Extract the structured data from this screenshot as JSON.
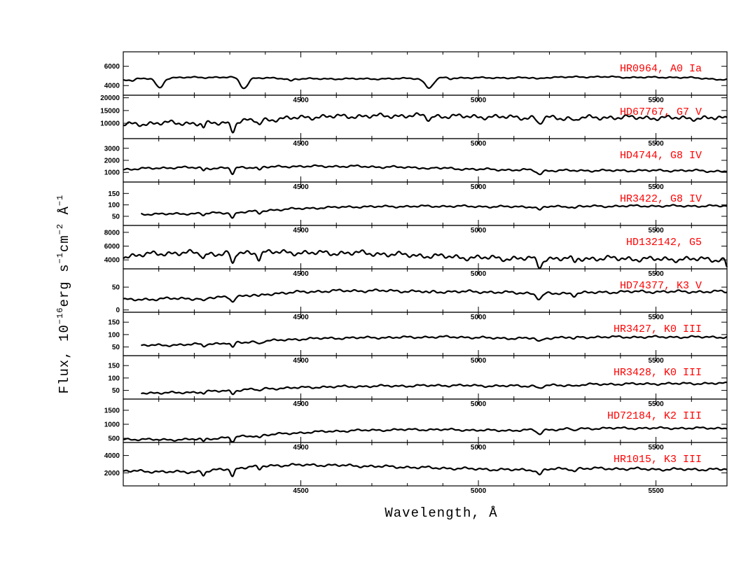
{
  "chart_data": {
    "type": "line",
    "xlabel": "Wavelength, Å",
    "ylabel": "Flux, 10^-16 erg s^-1 cm^-2 Å^-1",
    "ylabel_parts": {
      "pre": "Flux, 10",
      "exp1": "−16",
      "mid1": "erg s",
      "exp2": "−1",
      "mid2": "cm",
      "exp3": "−2",
      "mid3": " Å",
      "exp4": "−1"
    },
    "xlim": [
      4000,
      5700
    ],
    "x_ticks": [
      4500,
      5000,
      5500
    ],
    "x_tick_labels": [
      "4500",
      "5000",
      "5500"
    ],
    "panels": [
      {
        "name": "HR0964, A0 Ia",
        "ylim": [
          3000,
          7500
        ],
        "yticks": [
          4000,
          6000
        ],
        "start": 4000,
        "base": [
          4600,
          4700,
          4750,
          4800,
          4850,
          4850,
          4850,
          4850,
          4800,
          4750,
          4700,
          4700,
          4700,
          4700,
          4700,
          4700,
          4700,
          4750,
          4750,
          4800,
          4800,
          4800,
          4800,
          4800,
          4800,
          4850,
          4850,
          4900,
          4900,
          4900,
          4850,
          4850,
          4850,
          4850,
          4800,
          4700,
          4600
        ],
        "lines": [
          [
            4102,
            1000,
            10
          ],
          [
            4340,
            1100,
            11
          ],
          [
            4861,
            1000,
            12
          ],
          [
            4471,
            200,
            6
          ],
          [
            4026,
            150,
            6
          ],
          [
            5890,
            150,
            8
          ],
          [
            4922,
            100,
            5
          ],
          [
            5169,
            150,
            8
          ]
        ],
        "noise": 50
      },
      {
        "name": "HD67767, G7 V",
        "ylim": [
          4000,
          21000
        ],
        "yticks": [
          10000,
          15000,
          20000
        ],
        "start": 4000,
        "base": [
          9500,
          9800,
          10000,
          10200,
          10000,
          9800,
          10300,
          10800,
          11200,
          11600,
          12000,
          12400,
          12600,
          12700,
          12800,
          12800,
          12900,
          13000,
          12900,
          12800,
          12700,
          12600,
          12500,
          12400,
          12300,
          12200,
          12100,
          12100,
          12200,
          12300,
          12300,
          12200,
          12100,
          12100,
          12000,
          12000,
          12000
        ],
        "lines": [
          [
            4308,
            3500,
            6
          ],
          [
            4226,
            1500,
            4
          ],
          [
            4383,
            1800,
            5
          ],
          [
            4861,
            1500,
            6
          ],
          [
            5172,
            2500,
            7
          ],
          [
            5270,
            1200,
            5
          ]
        ],
        "noise": 600
      },
      {
        "name": "HD4744, G8 IV",
        "ylim": [
          200,
          3800
        ],
        "yticks": [
          1000,
          2000,
          3000
        ],
        "start": 4000,
        "base": [
          1250,
          1300,
          1350,
          1400,
          1400,
          1350,
          1350,
          1400,
          1450,
          1450,
          1500,
          1500,
          1500,
          1500,
          1500,
          1450,
          1450,
          1400,
          1400,
          1350,
          1300,
          1250,
          1250,
          1200,
          1200,
          1150,
          1150,
          1150,
          1150,
          1150,
          1150,
          1150,
          1150,
          1150,
          1150,
          1100,
          1100
        ],
        "lines": [
          [
            4308,
            500,
            5
          ],
          [
            4383,
            250,
            5
          ],
          [
            4226,
            200,
            4
          ],
          [
            5172,
            300,
            7
          ],
          [
            4861,
            150,
            5
          ]
        ],
        "noise": 60
      },
      {
        "name": "HR3422, G8 IV",
        "ylim": [
          10,
          200
        ],
        "yticks": [
          50,
          100,
          150
        ],
        "start": 4050,
        "base": [
          60,
          60,
          60,
          60,
          62,
          63,
          65,
          68,
          72,
          78,
          82,
          85,
          88,
          90,
          92,
          92,
          93,
          93,
          94,
          94,
          94,
          93,
          92,
          92,
          92,
          92,
          93,
          93,
          94,
          94,
          95,
          95,
          95,
          95,
          95,
          95,
          95
        ],
        "lines": [
          [
            4308,
            25,
            5
          ],
          [
            4383,
            10,
            5
          ],
          [
            4226,
            8,
            4
          ],
          [
            5172,
            15,
            7
          ],
          [
            5270,
            7,
            5
          ]
        ],
        "noise": 3
      },
      {
        "name": "HD132142, G5",
        "ylim": [
          2700,
          9000
        ],
        "yticks": [
          4000,
          6000,
          8000
        ],
        "start": 4000,
        "base": [
          4500,
          4700,
          4900,
          5000,
          5000,
          4900,
          4900,
          5000,
          5100,
          5100,
          5100,
          5000,
          5000,
          5000,
          5000,
          4900,
          4800,
          4700,
          4600,
          4500,
          4400,
          4300,
          4300,
          4200,
          4200,
          4200,
          4200,
          4200,
          4200,
          4200,
          4200,
          4100,
          4100,
          4100,
          4100,
          4100,
          4000
        ],
        "lines": [
          [
            4308,
            1700,
            5
          ],
          [
            4383,
            900,
            5
          ],
          [
            4226,
            700,
            4
          ],
          [
            5172,
            1200,
            7
          ],
          [
            5270,
            600,
            5
          ],
          [
            5700,
            1000,
            3
          ]
        ],
        "noise": 250
      },
      {
        "name": "HD74377, K3 V",
        "ylim": [
          -5,
          90
        ],
        "yticks": [
          0,
          50
        ],
        "start": 4000,
        "base": [
          22,
          23,
          24,
          25,
          25,
          26,
          28,
          30,
          33,
          36,
          38,
          40,
          41,
          42,
          42,
          42,
          42,
          41,
          40,
          40,
          40,
          40,
          39,
          38,
          37,
          36,
          36,
          37,
          38,
          39,
          40,
          40,
          40,
          40,
          40,
          40,
          40
        ],
        "lines": [
          [
            4308,
            10,
            5
          ],
          [
            4383,
            5,
            5
          ],
          [
            4226,
            8,
            5
          ],
          [
            5172,
            12,
            8
          ],
          [
            5270,
            5,
            5
          ],
          [
            4861,
            3,
            5
          ]
        ],
        "noise": 2
      },
      {
        "name": "HR3427, K0 III",
        "ylim": [
          15,
          190
        ],
        "yticks": [
          50,
          100,
          150
        ],
        "start": 4050,
        "base": [
          55,
          56,
          57,
          58,
          60,
          62,
          65,
          68,
          72,
          76,
          80,
          83,
          85,
          86,
          87,
          88,
          88,
          89,
          90,
          90,
          90,
          88,
          86,
          85,
          85,
          86,
          88,
          89,
          90,
          90,
          90,
          90,
          90,
          90,
          90,
          90,
          90
        ],
        "lines": [
          [
            4308,
            20,
            5
          ],
          [
            4383,
            9,
            5
          ],
          [
            4226,
            9,
            4
          ],
          [
            5172,
            15,
            7
          ],
          [
            5270,
            7,
            5
          ]
        ],
        "noise": 3
      },
      {
        "name": "HR3428, K0 III",
        "ylim": [
          15,
          190
        ],
        "yticks": [
          50,
          100,
          150
        ],
        "start": 4050,
        "base": [
          40,
          40,
          40,
          40,
          42,
          45,
          48,
          52,
          55,
          58,
          60,
          62,
          64,
          65,
          66,
          67,
          68,
          68,
          69,
          70,
          70,
          69,
          68,
          68,
          68,
          69,
          70,
          72,
          74,
          75,
          76,
          76,
          77,
          77,
          78,
          78,
          78
        ],
        "lines": [
          [
            4308,
            14,
            5
          ],
          [
            4383,
            7,
            5
          ],
          [
            4226,
            6,
            4
          ],
          [
            5172,
            10,
            7
          ],
          [
            5270,
            5,
            5
          ]
        ],
        "noise": 3
      },
      {
        "name": "HD72184, K2 III",
        "ylim": [
          350,
          1900
        ],
        "yticks": [
          500,
          1000,
          1500
        ],
        "start": 4000,
        "base": [
          470,
          460,
          450,
          450,
          460,
          480,
          520,
          560,
          600,
          640,
          680,
          710,
          740,
          760,
          780,
          790,
          800,
          810,
          810,
          810,
          800,
          790,
          780,
          780,
          790,
          800,
          820,
          840,
          850,
          860,
          860,
          860,
          860,
          860,
          860,
          860,
          860
        ],
        "lines": [
          [
            4308,
            180,
            5
          ],
          [
            4383,
            80,
            5
          ],
          [
            4226,
            90,
            4
          ],
          [
            5172,
            150,
            7
          ],
          [
            5270,
            70,
            5
          ]
        ],
        "noise": 25
      },
      {
        "name": "HR1015, K3 III",
        "ylim": [
          500,
          5500
        ],
        "yticks": [
          2000,
          4000
        ],
        "start": 4000,
        "base": [
          2200,
          2200,
          2150,
          2100,
          2100,
          2200,
          2400,
          2600,
          2750,
          2850,
          2900,
          2900,
          2900,
          2850,
          2800,
          2750,
          2700,
          2650,
          2600,
          2550,
          2500,
          2450,
          2400,
          2350,
          2350,
          2400,
          2450,
          2500,
          2500,
          2500,
          2450,
          2450,
          2400,
          2400,
          2400,
          2400,
          2400
        ],
        "lines": [
          [
            4308,
            900,
            5
          ],
          [
            4383,
            400,
            5
          ],
          [
            4226,
            450,
            4
          ],
          [
            5172,
            600,
            7
          ],
          [
            5270,
            300,
            5
          ]
        ],
        "noise": 100
      }
    ]
  }
}
